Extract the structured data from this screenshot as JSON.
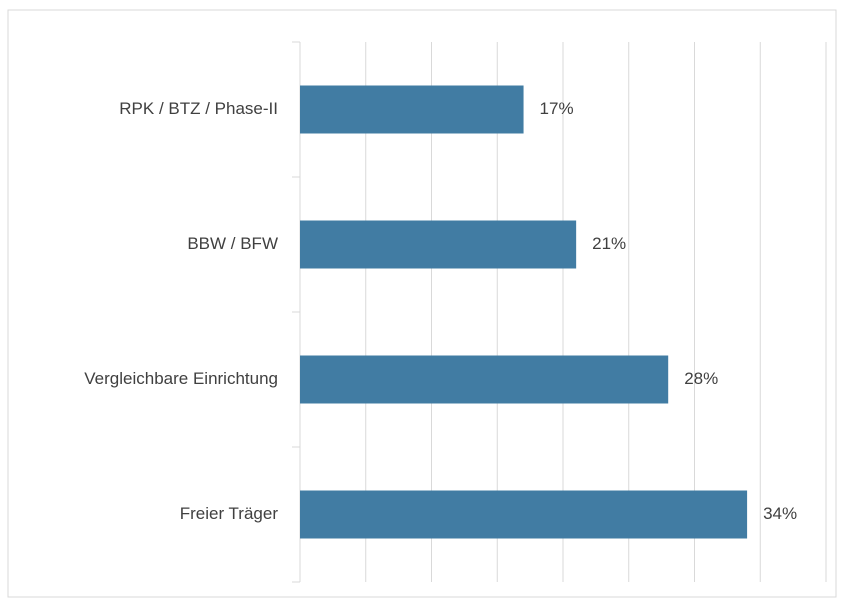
{
  "chart_data": {
    "type": "bar",
    "orientation": "horizontal",
    "categories": [
      "RPK / BTZ / Phase-II",
      "BBW / BFW",
      "Vergleichbare Einrichtung",
      "Freier Träger"
    ],
    "values": [
      17,
      21,
      28,
      34
    ],
    "value_labels": [
      "17%",
      "21%",
      "28%",
      "34%"
    ],
    "color": "#417ca3",
    "xlim": [
      0,
      40
    ],
    "xticks": [
      0,
      5,
      10,
      15,
      20,
      25,
      30,
      35,
      40
    ],
    "grid": true
  }
}
